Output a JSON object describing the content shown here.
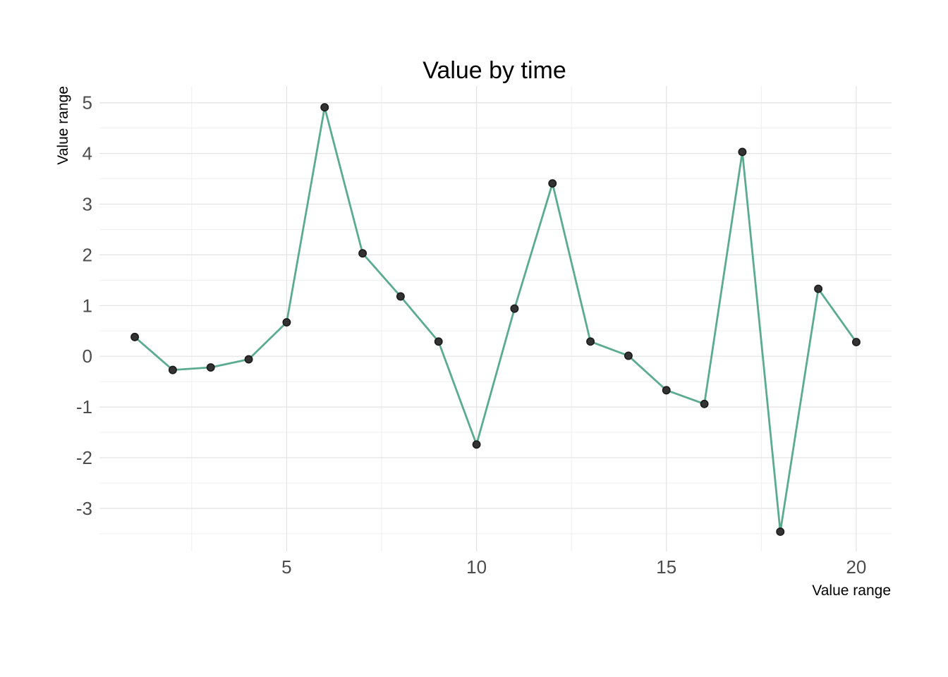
{
  "chart_data": {
    "type": "line",
    "title": "Value by time",
    "xlabel": "Value range",
    "ylabel": "Value range",
    "x": [
      1,
      2,
      3,
      4,
      5,
      6,
      7,
      8,
      9,
      10,
      11,
      12,
      13,
      14,
      15,
      16,
      17,
      18,
      19,
      20
    ],
    "series": [
      {
        "values": [
          0.38,
          -0.27,
          -0.22,
          -0.06,
          0.67,
          4.91,
          2.03,
          1.18,
          0.29,
          -1.74,
          0.94,
          3.41,
          0.29,
          0.01,
          -0.67,
          -0.94,
          4.03,
          -3.46,
          1.33,
          0.28
        ],
        "line_color": "#5aab8f",
        "point_color": "#333333"
      }
    ],
    "xlim": [
      0.07,
      20.93
    ],
    "ylim": [
      -3.85,
      5.33
    ],
    "x_ticks": [
      5,
      10,
      15,
      20
    ],
    "x_tick_labels": [
      "5",
      "10",
      "15",
      "20"
    ],
    "x_minor_ticks": [
      2.5,
      7.5,
      12.5,
      17.5
    ],
    "y_ticks": [
      -3,
      -2,
      -1,
      0,
      1,
      2,
      3,
      4,
      5
    ],
    "y_tick_labels": [
      "-3",
      "-2",
      "-1",
      "0",
      "1",
      "2",
      "3",
      "4",
      "5"
    ],
    "y_minor_ticks": [
      -3.5,
      -2.5,
      -1.5,
      -0.5,
      0.5,
      1.5,
      2.5,
      3.5,
      4.5
    ],
    "grid": true,
    "legend": "none"
  }
}
